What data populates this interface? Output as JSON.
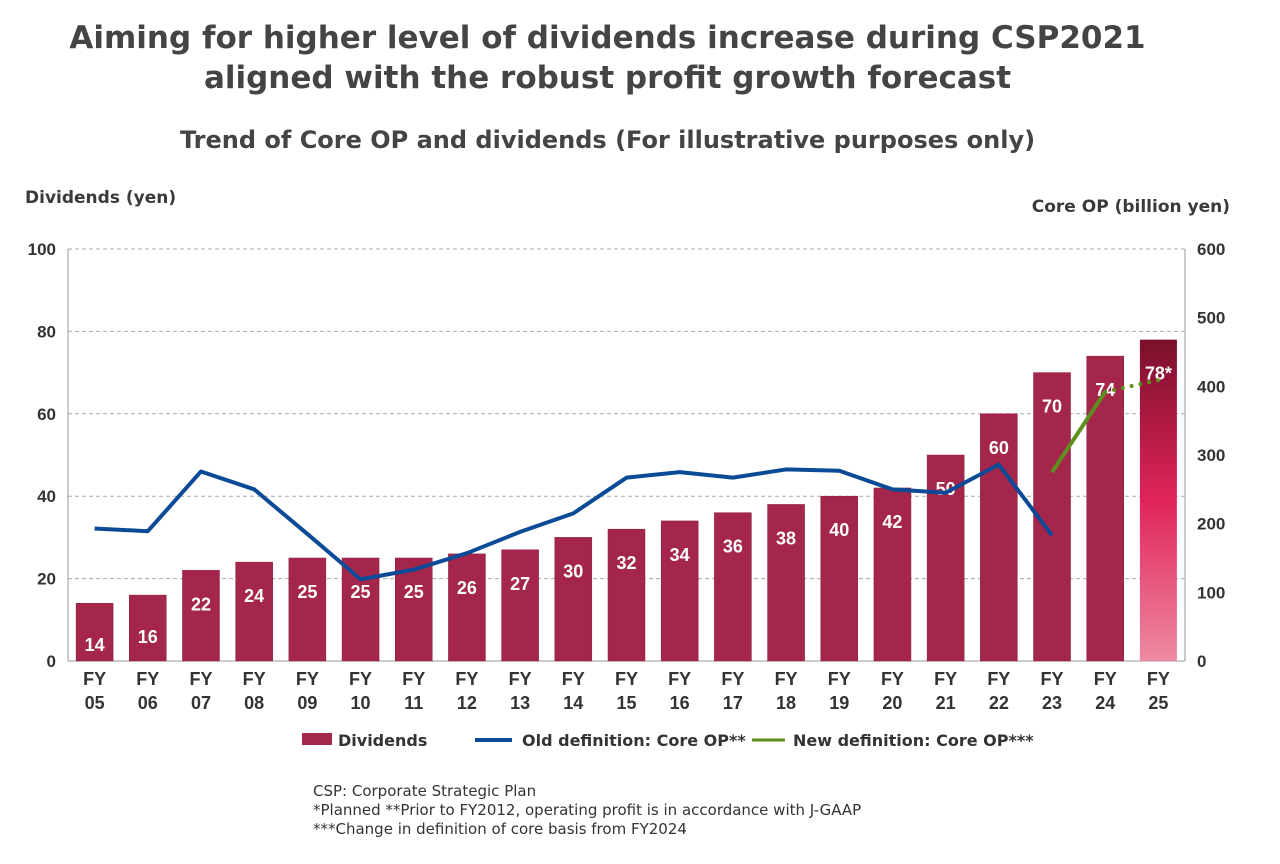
{
  "title_line1": "Aiming for higher level of dividends increase during CSP2021",
  "title_line2": "aligned with the robust profit growth forecast",
  "chart_data": {
    "type": "bar",
    "title": "Trend of Core OP and dividends (For illustrative purposes only)",
    "ylabel": "Dividends (yen)",
    "y2label": "Core OP (billion yen)",
    "ylim": [
      0,
      100
    ],
    "y2lim": [
      0,
      600
    ],
    "yticks": [
      0,
      20,
      40,
      60,
      80,
      100
    ],
    "y2ticks": [
      0,
      100,
      200,
      300,
      400,
      500,
      600
    ],
    "categories": [
      [
        "FY",
        "05"
      ],
      [
        "FY",
        "06"
      ],
      [
        "FY",
        "07"
      ],
      [
        "FY",
        "08"
      ],
      [
        "FY",
        "09"
      ],
      [
        "FY",
        "10"
      ],
      [
        "FY",
        "11"
      ],
      [
        "FY",
        "12"
      ],
      [
        "FY",
        "13"
      ],
      [
        "FY",
        "14"
      ],
      [
        "FY",
        "15"
      ],
      [
        "FY",
        "16"
      ],
      [
        "FY",
        "17"
      ],
      [
        "FY",
        "18"
      ],
      [
        "FY",
        "19"
      ],
      [
        "FY",
        "20"
      ],
      [
        "FY",
        "21"
      ],
      [
        "FY",
        "22"
      ],
      [
        "FY",
        "23"
      ],
      [
        "FY",
        "24"
      ],
      [
        "FY",
        "25"
      ]
    ],
    "series": [
      {
        "name": "Dividends",
        "type": "bar",
        "axis": "left",
        "color": "#a5264b",
        "values": [
          14,
          16,
          22,
          24,
          25,
          25,
          25,
          26,
          27,
          30,
          32,
          34,
          36,
          38,
          40,
          42,
          50,
          60,
          70,
          74,
          78
        ],
        "labels": [
          "14",
          "16",
          "22",
          "24",
          "25",
          "25",
          "25",
          "26",
          "27",
          "30",
          "32",
          "34",
          "36",
          "38",
          "40",
          "42",
          "50",
          "60",
          "70",
          "74",
          "78*"
        ]
      },
      {
        "name": "Old definition: Core OP**",
        "type": "line",
        "axis": "right",
        "color": "#0b4a96",
        "values": [
          193,
          189,
          276,
          250,
          185,
          119,
          133,
          157,
          188,
          215,
          267,
          275,
          267,
          279,
          277,
          250,
          245,
          286,
          183,
          null,
          null
        ]
      },
      {
        "name": "New definition: Core OP***",
        "type": "line",
        "axis": "right",
        "color": "#5e8e1e",
        "values": [
          null,
          null,
          null,
          null,
          null,
          null,
          null,
          null,
          null,
          null,
          null,
          null,
          null,
          null,
          null,
          null,
          null,
          null,
          275,
          392,
          409
        ],
        "dotted_last_segment": true
      }
    ],
    "grid": true,
    "legend": "bottom"
  },
  "notes": [
    "CSP: Corporate Strategic Plan",
    "*Planned  **Prior to FY2012, operating profit is in accordance with J-GAAP",
    "***Change in definition of core basis from FY2024"
  ]
}
